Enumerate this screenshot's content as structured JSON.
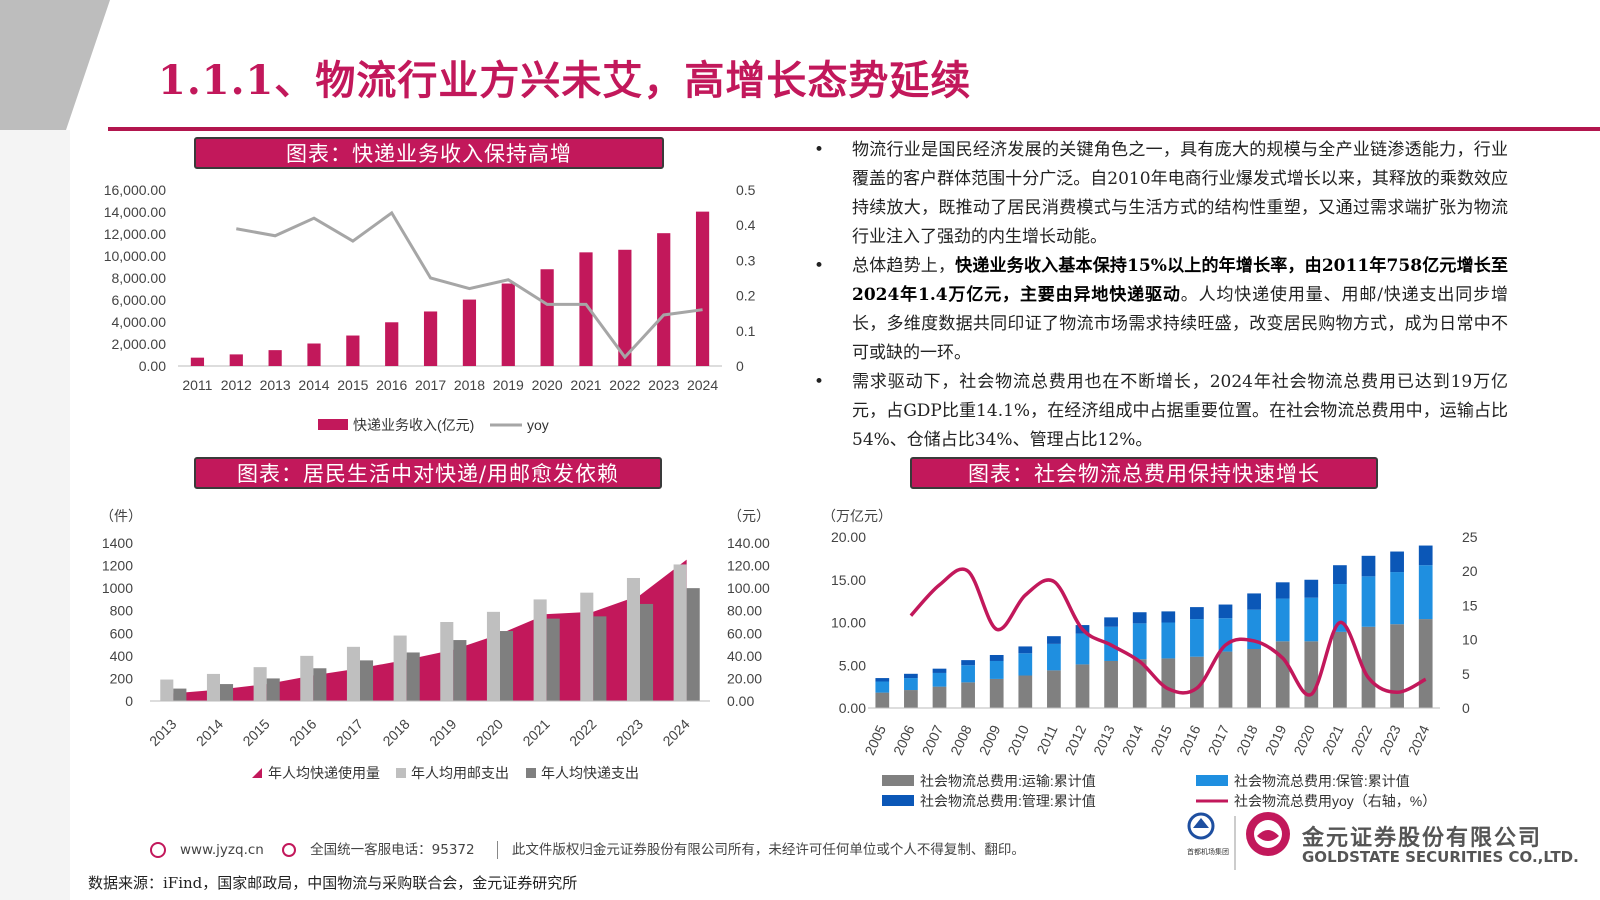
{
  "page": {
    "title": "1.1.1、物流行业方兴未艾，高增长态势延续"
  },
  "bullets": [
    {
      "parts": [
        {
          "text": "物流行业是国民经济发展的关键角色之一，具有庞大的规模与全产业链渗透能力，行业覆盖的客户群体范围十分广泛。自2010年电商行业爆发式增长以来，其释放的乘数效应持续放大，既推动了居民消费模式与生活方式的结构性重塑，又通过需求端扩张为物流行业注入了强劲的内生增长动能。",
          "bold": false
        }
      ]
    },
    {
      "parts": [
        {
          "text": "总体趋势上，",
          "bold": false
        },
        {
          "text": "快递业务收入基本保持15%以上的年增长率，由2011年758亿元增长至2024年1.4万亿元，主要由异地快递驱动",
          "bold": true
        },
        {
          "text": "。人均快递使用量、用邮/快递支出同步增长，多维度数据共同印证了物流市场需求持续旺盛，改变居民购物方式，成为日常中不可或缺的一环。",
          "bold": false
        }
      ]
    },
    {
      "parts": [
        {
          "text": "需求驱动下，社会物流总费用也在不断增长，2024年社会物流总费用已达到19万亿元，占GDP比重14.1%，在经济组成中占据重要位置。在社会物流总费用中，运输占比54%、仓储占比34%、管理占比12%。",
          "bold": false
        }
      ]
    }
  ],
  "colors": {
    "accent": "#c2185b",
    "gray_line": "#a6a6a6",
    "light_gray": "#bfbfbf",
    "dark_gray": "#7f7f7f",
    "transport": "#808080",
    "storage": "#1f8fe0",
    "management": "#0b57b7"
  },
  "footer": {
    "website": "www.jyzq.cn",
    "hotline": "全国统一客服电话：95372",
    "copyright": "此文件版权归金元证券股份有限公司所有，未经许可任何单位或个人不得复制、翻印。",
    "source": "数据来源：iFind，国家邮政局，中国物流与采购联合会，金元证券研究所",
    "company_cn": "金元证券股份有限公司",
    "company_en": "GOLDSTATE SECURITIES CO.,LTD.",
    "logo_small": "首都机场集团"
  },
  "chart_data": [
    {
      "type": "bar",
      "title": "图表：快递业务收入保持高增",
      "categories": [
        "2011",
        "2012",
        "2013",
        "2014",
        "2015",
        "2016",
        "2017",
        "2018",
        "2019",
        "2020",
        "2021",
        "2022",
        "2023",
        "2024"
      ],
      "series": [
        {
          "name": "快递业务收入(亿元)",
          "kind": "bar",
          "axis": "left",
          "values": [
            758,
            1055,
            1442,
            2045,
            2770,
            3974,
            4957,
            6038,
            7497,
            8795,
            10332,
            10566,
            12074,
            14034
          ]
        },
        {
          "name": "yoy",
          "kind": "line",
          "axis": "right",
          "values": [
            null,
            0.39,
            0.37,
            0.42,
            0.355,
            0.435,
            0.25,
            0.22,
            0.245,
            0.175,
            0.175,
            0.025,
            0.145,
            0.16
          ]
        }
      ],
      "ylim": [
        0,
        16000
      ],
      "yticks": [
        "0.00",
        "2,000.00",
        "4,000.00",
        "6,000.00",
        "8,000.00",
        "10,000.00",
        "12,000.00",
        "14,000.00",
        "16,000.00"
      ],
      "y2lim": [
        0,
        0.5
      ],
      "y2ticks": [
        "0",
        "0.1",
        "0.2",
        "0.3",
        "0.4",
        "0.5"
      ],
      "legend": "bottom"
    },
    {
      "type": "bar",
      "title": "图表：居民生活中对快递/用邮愈发依赖",
      "ylabel": "（件）",
      "y2label": "（元）",
      "categories": [
        "2013",
        "2014",
        "2015",
        "2016",
        "2017",
        "2018",
        "2019",
        "2020",
        "2021",
        "2022",
        "2023",
        "2024"
      ],
      "series": [
        {
          "name": "年人均快递使用量",
          "kind": "area",
          "axis": "left",
          "values": [
            68,
            102,
            150,
            227,
            290,
            365,
            454,
            594,
            770,
            791,
            937,
            1253
          ]
        },
        {
          "name": "年人均用邮支出",
          "kind": "bar",
          "axis": "right",
          "values": [
            19,
            24,
            30,
            40,
            48,
            58,
            70,
            79,
            90,
            96,
            109,
            121
          ]
        },
        {
          "name": "年人均快递支出",
          "kind": "bar",
          "axis": "right",
          "values": [
            11,
            15,
            20,
            29,
            36,
            43,
            54,
            62,
            73,
            75,
            86,
            100
          ]
        }
      ],
      "ylim": [
        0,
        1400
      ],
      "yticks": [
        "0",
        "200",
        "400",
        "600",
        "800",
        "1000",
        "1200",
        "1400"
      ],
      "y2lim": [
        0,
        140
      ],
      "y2ticks": [
        "0.00",
        "20.00",
        "40.00",
        "60.00",
        "80.00",
        "100.00",
        "120.00",
        "140.00"
      ],
      "legend": "bottom"
    },
    {
      "type": "bar",
      "title": "图表：社会物流总费用保持快速增长",
      "ylabel": "（万亿元）",
      "categories": [
        "2005",
        "2006",
        "2007",
        "2008",
        "2009",
        "2010",
        "2011",
        "2012",
        "2013",
        "2014",
        "2015",
        "2016",
        "2017",
        "2018",
        "2019",
        "2020",
        "2021",
        "2022",
        "2023",
        "2024"
      ],
      "series": [
        {
          "name": "社会物流总费用:运输:累计值",
          "kind": "stack",
          "axis": "left",
          "values": [
            1.8,
            2.1,
            2.5,
            3.0,
            3.4,
            3.8,
            4.4,
            5.1,
            5.5,
            5.7,
            5.8,
            6.0,
            6.6,
            6.9,
            7.8,
            7.8,
            8.9,
            9.5,
            9.8,
            10.4
          ]
        },
        {
          "name": "社会物流总费用:保管:累计值",
          "kind": "stack",
          "axis": "left",
          "values": [
            1.3,
            1.4,
            1.6,
            2.0,
            2.1,
            2.6,
            3.1,
            3.6,
            4.0,
            4.2,
            4.2,
            4.4,
            3.9,
            4.6,
            5.0,
            5.1,
            5.6,
            5.9,
            6.1,
            6.3
          ]
        },
        {
          "name": "社会物流总费用:管理:累计值",
          "kind": "stack",
          "axis": "left",
          "values": [
            0.4,
            0.5,
            0.5,
            0.6,
            0.7,
            0.8,
            0.9,
            1.0,
            1.1,
            1.3,
            1.3,
            1.4,
            1.6,
            1.9,
            1.9,
            2.1,
            2.2,
            2.4,
            2.4,
            2.3
          ]
        },
        {
          "name": "社会物流总费用yoy（右轴，%）",
          "kind": "line",
          "axis": "right",
          "values": [
            null,
            13.5,
            18.0,
            20.0,
            11.5,
            16.5,
            18.5,
            11.5,
            9.2,
            6.8,
            2.8,
            2.9,
            9.2,
            9.8,
            7.3,
            2.0,
            12.5,
            4.4,
            2.3,
            4.2
          ]
        }
      ],
      "ylim": [
        0,
        20
      ],
      "yticks": [
        "0.00",
        "5.00",
        "10.00",
        "15.00",
        "20.00"
      ],
      "y2lim": [
        0,
        25
      ],
      "y2ticks": [
        "0",
        "5",
        "10",
        "15",
        "20",
        "25"
      ],
      "legend": "bottom"
    }
  ]
}
